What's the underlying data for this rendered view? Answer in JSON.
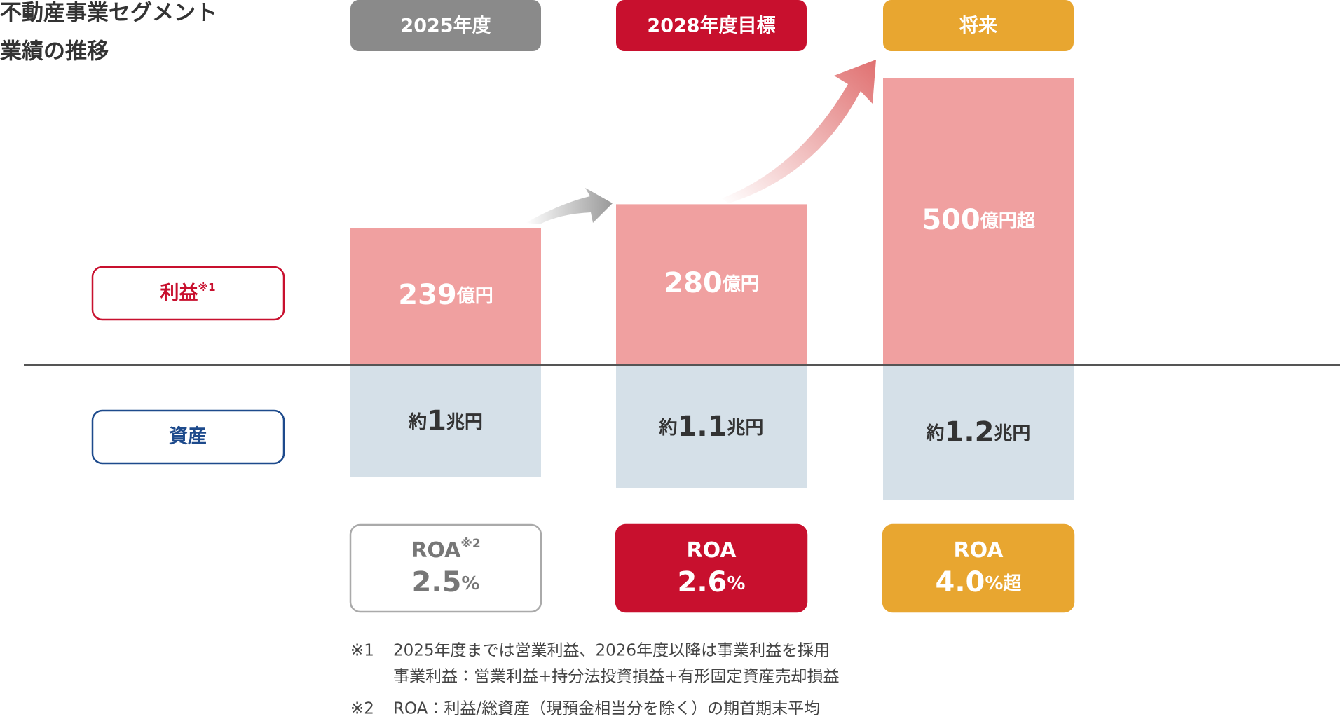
{
  "title_lines": [
    "不動産事業セグメント",
    "業績の推移"
  ],
  "row_labels": {
    "profit": "利益",
    "profit_note": "※1",
    "assets": "資産"
  },
  "columns": [
    {
      "header": "2025年度",
      "profit": 239,
      "profit_unit": "億円",
      "asset_prefix": "約",
      "assets": 1,
      "asset_unit": "兆円",
      "roa_label": "ROA",
      "roa_note": "※2",
      "roa": "2.5",
      "roa_unit": "%"
    },
    {
      "header": "2028年度目標",
      "profit": 280,
      "profit_unit": "億円",
      "asset_prefix": "約",
      "assets": 1.1,
      "asset_unit": "兆円",
      "roa_label": "ROA",
      "roa": "2.6",
      "roa_unit": "%"
    },
    {
      "header": "将来",
      "profit": 500,
      "profit_unit": "億円超",
      "asset_prefix": "約",
      "assets": 1.2,
      "asset_unit": "兆円",
      "roa_label": "ROA",
      "roa": "4.0",
      "roa_unit": "%超"
    }
  ],
  "footnotes": [
    {
      "mark": "※1",
      "lines": [
        "2025年度までは営業利益、2026年度以降は事業利益を採用",
        "事業利益：営業利益+持分法投資損益+有形固定資産売却損益"
      ]
    },
    {
      "mark": "※2",
      "lines": [
        "ROA：利益/総資産（現預金相当分を除く）の期首期末平均"
      ]
    }
  ]
}
